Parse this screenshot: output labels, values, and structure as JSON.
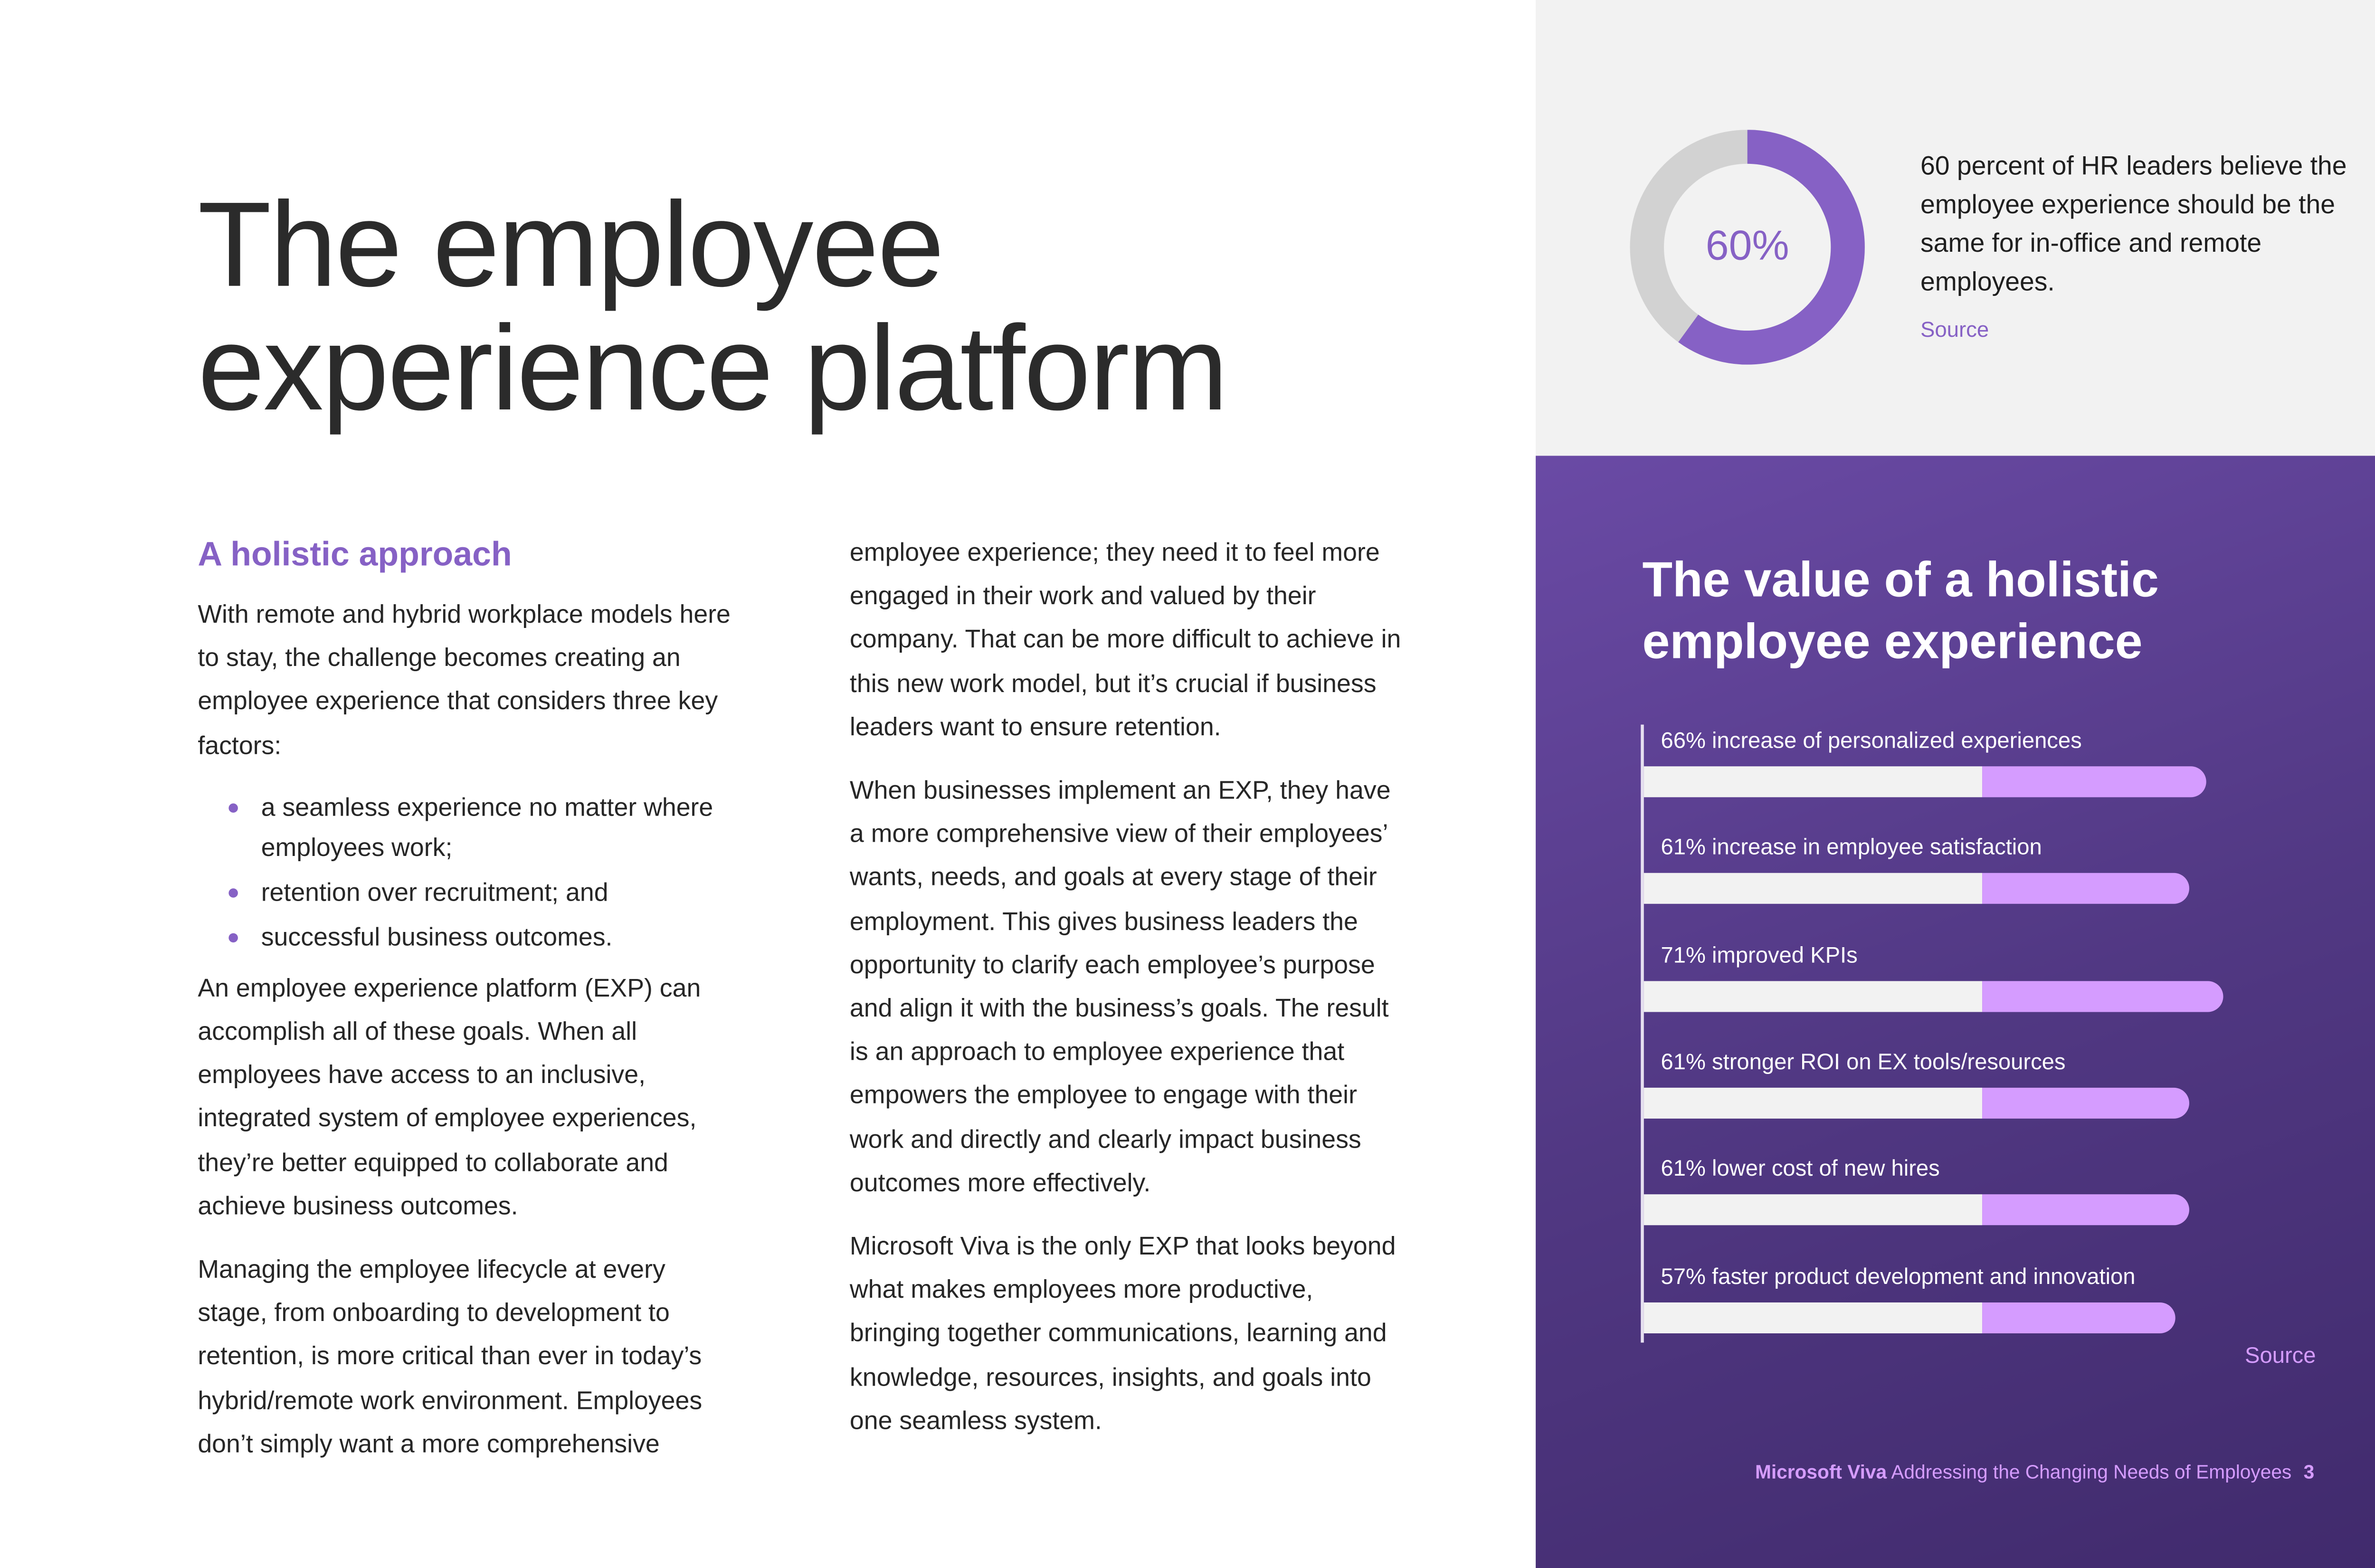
{
  "title": [
    "The employee",
    "experience platform"
  ],
  "section_heading": "A holistic approach",
  "col1": {
    "p1": "With remote and hybrid workplace models here to stay, the challenge becomes creating an employee experience that considers three key factors:",
    "bullets": [
      "a seamless experience no matter where employees work;",
      "retention over recruitment; and",
      "successful business outcomes."
    ],
    "p2": "An employee experience platform (EXP) can accomplish all of these goals. When all employees have access to an inclusive, integrated system of employee experiences, they’re better equipped to collaborate and achieve business outcomes.",
    "p3": "Managing the employee lifecycle at every stage, from onboarding to development to retention, is more critical than ever in today’s hybrid/remote work environment. Employees don’t simply want a more comprehensive"
  },
  "col2": {
    "p1": "employee experience; they need it to feel more engaged in their work and valued by their company. That can be more difficult to achieve in this new work model, but it’s crucial if business leaders want to ensure retention.",
    "p2": "When businesses implement an EXP, they have a more comprehensive view of their employees’ wants, needs, and goals at every stage of their employment. This gives business leaders the opportunity to clarify each employee’s purpose and align it with the business’s goals. The result is an approach to employee experience that empowers the employee to engage with their work and directly and clearly impact business outcomes more effectively.",
    "p3": "Microsoft Viva is the only EXP that looks beyond what makes employees more productive, bringing together communications, learning and knowledge, resources, insights, and goals into one seamless system."
  },
  "stat": {
    "value": 60,
    "label": "60%",
    "text": "60 percent of HR leaders believe the employee experience should be the same for in-office and remote employees.",
    "source": "Source",
    "colors": {
      "fill": "#8661c5",
      "rest": "#d2d2d2"
    }
  },
  "panel": {
    "title": "The value of a holistic employee experience",
    "source": "Source"
  },
  "chart_data": {
    "type": "bar",
    "orientation": "horizontal",
    "categories": [
      "66% increase of personalized experiences",
      "61% increase in employee satisfaction",
      "71% improved KPIs",
      "61% stronger ROI on EX tools/resources",
      "61% lower cost of new hires",
      "57% faster product development and innovation"
    ],
    "values": [
      66,
      61,
      71,
      61,
      61,
      57
    ],
    "colors": {
      "base": "#f2f2f2",
      "highlight": "#d59cff"
    }
  },
  "footer": {
    "brand": "Microsoft Viva",
    "doc_title": "Addressing the Changing Needs of Employees",
    "page": "3"
  }
}
